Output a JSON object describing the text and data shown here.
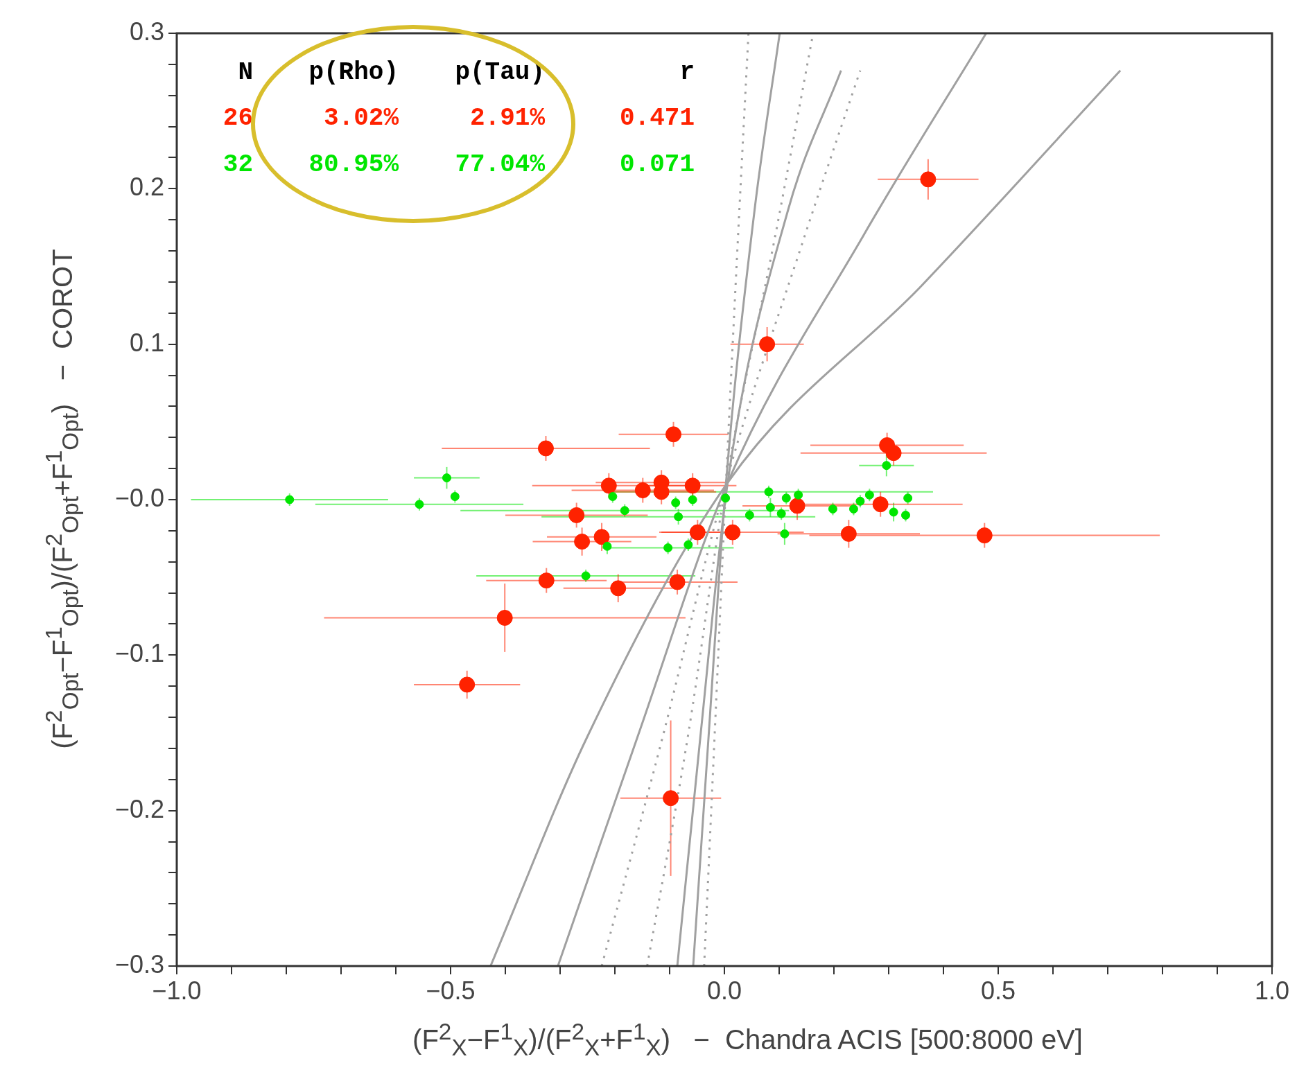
{
  "chart_data": {
    "type": "scatter",
    "xlabel": "(F$^{2}$$_{X}$−F$^{1}$$_{X}$)/(F$^{2}$$_{X}$+F$^{1}$$_{X}$)   −  Chandra ACIS [500:8000 eV]",
    "ylabel": "(F$^{2}$$_{Opt}$−F$^{1}$$_{Opt}$)/(F$^{2}$$_{Opt}$+F$^{1}$$_{Opt}$)   −  COROT",
    "annotations": [
      "N",
      "p(Rho)",
      "p(Tau)",
      "r",
      "26",
      "3.02%",
      "2.91%",
      "0.471",
      "32",
      "80.95%",
      "77.04%",
      "0.071"
    ],
    "xlim": [
      -1,
      1
    ],
    "xticks": [
      {
        "value": -1,
        "label": "−1.0"
      },
      {
        "value": -0.9,
        "label": null
      },
      {
        "value": -0.8,
        "label": null
      },
      {
        "value": -0.7,
        "label": null
      },
      {
        "value": -0.6,
        "label": null
      },
      {
        "value": -0.5,
        "label": "−0.5"
      },
      {
        "value": -0.4,
        "label": null
      },
      {
        "value": -0.3,
        "label": null
      },
      {
        "value": -0.2,
        "label": null
      },
      {
        "value": -0.1,
        "label": null
      },
      {
        "value": 0,
        "label": "0.0"
      },
      {
        "value": 0.1,
        "label": null
      },
      {
        "value": 0.2,
        "label": null
      },
      {
        "value": 0.3,
        "label": null
      },
      {
        "value": 0.4,
        "label": null
      },
      {
        "value": 0.5,
        "label": "0.5"
      },
      {
        "value": 0.6,
        "label": null
      },
      {
        "value": 0.7,
        "label": null
      },
      {
        "value": 0.8,
        "label": null
      },
      {
        "value": 0.9,
        "label": null
      },
      {
        "value": 1,
        "label": "1.0"
      }
    ],
    "ylim": [
      -0.3,
      0.3
    ],
    "yticks": [
      {
        "value": -0.3,
        "label": "−0.3"
      },
      {
        "value": -0.28,
        "label": null
      },
      {
        "value": -0.26,
        "label": null
      },
      {
        "value": -0.24,
        "label": null
      },
      {
        "value": -0.22,
        "label": null
      },
      {
        "value": -0.2,
        "label": "−0.2"
      },
      {
        "value": -0.18,
        "label": null
      },
      {
        "value": -0.16,
        "label": null
      },
      {
        "value": -0.14,
        "label": null
      },
      {
        "value": -0.12,
        "label": null
      },
      {
        "value": -0.1,
        "label": "−0.1"
      },
      {
        "value": -0.08,
        "label": null
      },
      {
        "value": -0.06,
        "label": null
      },
      {
        "value": -0.04,
        "label": null
      },
      {
        "value": -0.02,
        "label": null
      },
      {
        "value": 0,
        "label": "−0.0"
      },
      {
        "value": 0.02,
        "label": null
      },
      {
        "value": 0.04,
        "label": null
      },
      {
        "value": 0.06,
        "label": null
      },
      {
        "value": 0.08,
        "label": null
      },
      {
        "value": 0.1,
        "label": "0.1"
      },
      {
        "value": 0.12,
        "label": null
      },
      {
        "value": 0.14,
        "label": null
      },
      {
        "value": 0.16,
        "label": null
      },
      {
        "value": 0.18,
        "label": null
      },
      {
        "value": 0.2,
        "label": "0.2"
      },
      {
        "value": 0.22,
        "label": null
      },
      {
        "value": 0.24,
        "label": null
      },
      {
        "value": 0.26,
        "label": null
      },
      {
        "value": 0.28,
        "label": null
      },
      {
        "value": 0.3,
        "label": "0.3"
      }
    ],
    "grid": false,
    "legend": false,
    "marker": "circle",
    "series": [
      {
        "type": "line",
        "marker": "none",
        "color": "#a0a0a0",
        "line_style": "solid",
        "x": [
          -0.427,
          -0.251,
          0.006,
          0.361,
          0.723
        ],
        "values": [
          -0.3,
          -0.153,
          0.011,
          0.138,
          0.276
        ]
      },
      {
        "type": "line",
        "marker": "none",
        "color": "#a0a0a0",
        "line_style": "solid",
        "x": [
          -0.304,
          -0.159,
          0.006,
          0.254,
          0.478
        ],
        "values": [
          -0.3,
          -0.153,
          0.011,
          0.17,
          0.3
        ]
      },
      {
        "type": "line",
        "marker": "none",
        "color": "#a0a0a0",
        "line_style": "solid",
        "x": [
          -0.086,
          -0.044,
          0.006,
          0.116,
          0.213
        ],
        "values": [
          -0.3,
          -0.153,
          0.011,
          0.186,
          0.276
        ]
      },
      {
        "type": "line",
        "marker": "none",
        "color": "#a0a0a0",
        "line_style": "solid",
        "x": [
          -0.057,
          -0.029,
          0.003,
          0.055,
          0.101
        ],
        "values": [
          -0.3,
          -0.153,
          0.011,
          0.186,
          0.3
        ]
      },
      {
        "type": "line",
        "marker": "none",
        "color": "#a0a0a0",
        "line_style": "dotted",
        "x": [
          -0.224,
          -0.113,
          0.003,
          0.147,
          0.248
        ],
        "values": [
          -0.3,
          -0.153,
          0.011,
          0.17,
          0.276
        ]
      },
      {
        "type": "line",
        "marker": "none",
        "color": "#a0a0a0",
        "line_style": "dotted",
        "x": [
          -0.141,
          -0.067,
          0.003,
          0.093,
          0.162
        ],
        "values": [
          -0.3,
          -0.153,
          0.011,
          0.17,
          0.3
        ]
      },
      {
        "type": "line",
        "marker": "none",
        "color": "#a0a0a0",
        "line_style": "dotted",
        "x": [
          -0.037,
          -0.018,
          0.003,
          0.025,
          0.044
        ],
        "values": [
          -0.3,
          -0.153,
          0.011,
          0.17,
          0.3
        ]
      },
      {
        "color": "#00e600",
        "x": [
          -0.794,
          -0.557,
          -0.507,
          -0.492,
          -0.204,
          -0.182,
          -0.089,
          -0.084,
          -0.058,
          0.002,
          0.046,
          -0.214,
          -0.103,
          -0.066,
          -0.253,
          0.296,
          0.081,
          0.113,
          0.135,
          0.084,
          0.104,
          0.198,
          0.236,
          0.248,
          0.265,
          0.335,
          0.309,
          0.331,
          0.11
        ],
        "values": [
          0,
          -0.003,
          0.014,
          0.002,
          0.002,
          -0.007,
          -0.002,
          -0.011,
          0,
          0.001,
          -0.01,
          -0.03,
          -0.031,
          -0.029,
          -0.049,
          0.022,
          0.005,
          0.001,
          0.003,
          -0.005,
          -0.009,
          -0.006,
          -0.006,
          -0.001,
          0.003,
          0.001,
          -0.008,
          -0.01,
          -0.022
        ],
        "xerrors": [
          0.18,
          0.19,
          0.06,
          null,
          null,
          0.3,
          null,
          0.25,
          null,
          null,
          null,
          null,
          0.12,
          null,
          0.2,
          0.05,
          0.3,
          null,
          null,
          null,
          null,
          null,
          null,
          null,
          null,
          null,
          null,
          null,
          null
        ],
        "errors": [
          0.004,
          0.004,
          0.007,
          0.004,
          0.004,
          0.004,
          0.004,
          0.005,
          0.004,
          0.004,
          0.004,
          0.005,
          0.004,
          0.004,
          0.004,
          0.007,
          0.004,
          0.004,
          0.004,
          0.006,
          0.004,
          0.004,
          0.004,
          0.004,
          0.004,
          0.004,
          0.006,
          0.004,
          0.007
        ]
      },
      {
        "color": "#ff2200",
        "x": [
          0.372,
          0.078,
          -0.093,
          -0.326,
          0.297,
          0.309,
          -0.211,
          -0.115,
          -0.115,
          -0.149,
          -0.058,
          0.133,
          0.285,
          -0.27,
          -0.224,
          -0.26,
          -0.049,
          0.015,
          0.227,
          0.475,
          -0.325,
          -0.086,
          -0.194,
          -0.401,
          -0.47,
          -0.098
        ],
        "values": [
          0.206,
          0.1,
          0.042,
          0.033,
          0.035,
          0.03,
          0.009,
          0.011,
          0.005,
          0.006,
          0.009,
          -0.004,
          -0.003,
          -0.01,
          -0.024,
          -0.027,
          -0.021,
          -0.021,
          -0.022,
          -0.023,
          -0.052,
          -0.053,
          -0.057,
          -0.076,
          -0.119,
          -0.192
        ],
        "xerrors": [
          0.092,
          0.067,
          0.1,
          0.19,
          0.14,
          0.17,
          0.14,
          0.12,
          0.1,
          0.13,
          0.08,
          0.1,
          0.15,
          0.13,
          0.1,
          0.09,
          0.07,
          0.13,
          0.13,
          0.32,
          0.11,
          0.11,
          0.1,
          0.33,
          0.097,
          0.092
        ],
        "errors": [
          0.013,
          0.011,
          0.008,
          0.008,
          0.008,
          0.008,
          0.008,
          0.008,
          0.008,
          0.008,
          0.008,
          0.009,
          0.008,
          0.008,
          0.009,
          0.009,
          0.008,
          0.008,
          0.009,
          0.008,
          0.008,
          0.008,
          0.009,
          0.022,
          0.009,
          0.05
        ]
      }
    ]
  }
}
